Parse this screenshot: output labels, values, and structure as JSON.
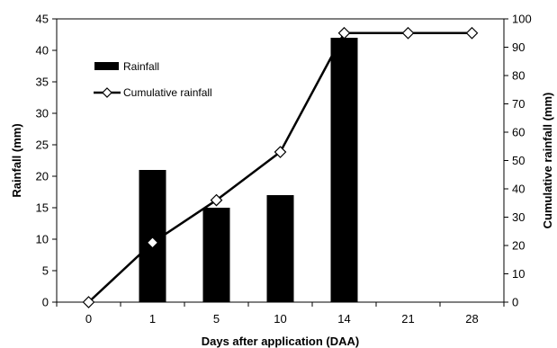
{
  "chart_data": {
    "type": "bar",
    "categories": [
      "0",
      "1",
      "5",
      "10",
      "14",
      "21",
      "28"
    ],
    "series": [
      {
        "name": "Rainfall",
        "type": "bar",
        "axis": "left",
        "values": [
          0,
          21,
          15,
          17,
          42,
          0,
          0
        ],
        "color": "#000000"
      },
      {
        "name": "Cumulative rainfall",
        "type": "line",
        "axis": "right",
        "values": [
          0,
          21,
          36,
          53,
          95,
          95,
          95
        ],
        "color": "#000000",
        "marker": "diamond-open"
      }
    ],
    "title": "",
    "xlabel": "Days after application (DAA)",
    "ylabel": "Rainfall (mm)",
    "y2label": "Cumulative rainfall (mm)",
    "ylim": [
      0,
      45
    ],
    "y2lim": [
      0,
      100
    ],
    "yticks": [
      "0",
      "5",
      "10",
      "15",
      "20",
      "25",
      "30",
      "35",
      "40",
      "45"
    ],
    "y2ticks": [
      "0",
      "10",
      "20",
      "30",
      "40",
      "50",
      "60",
      "70",
      "80",
      "90",
      "100"
    ],
    "grid": false,
    "legend": "top-left"
  }
}
